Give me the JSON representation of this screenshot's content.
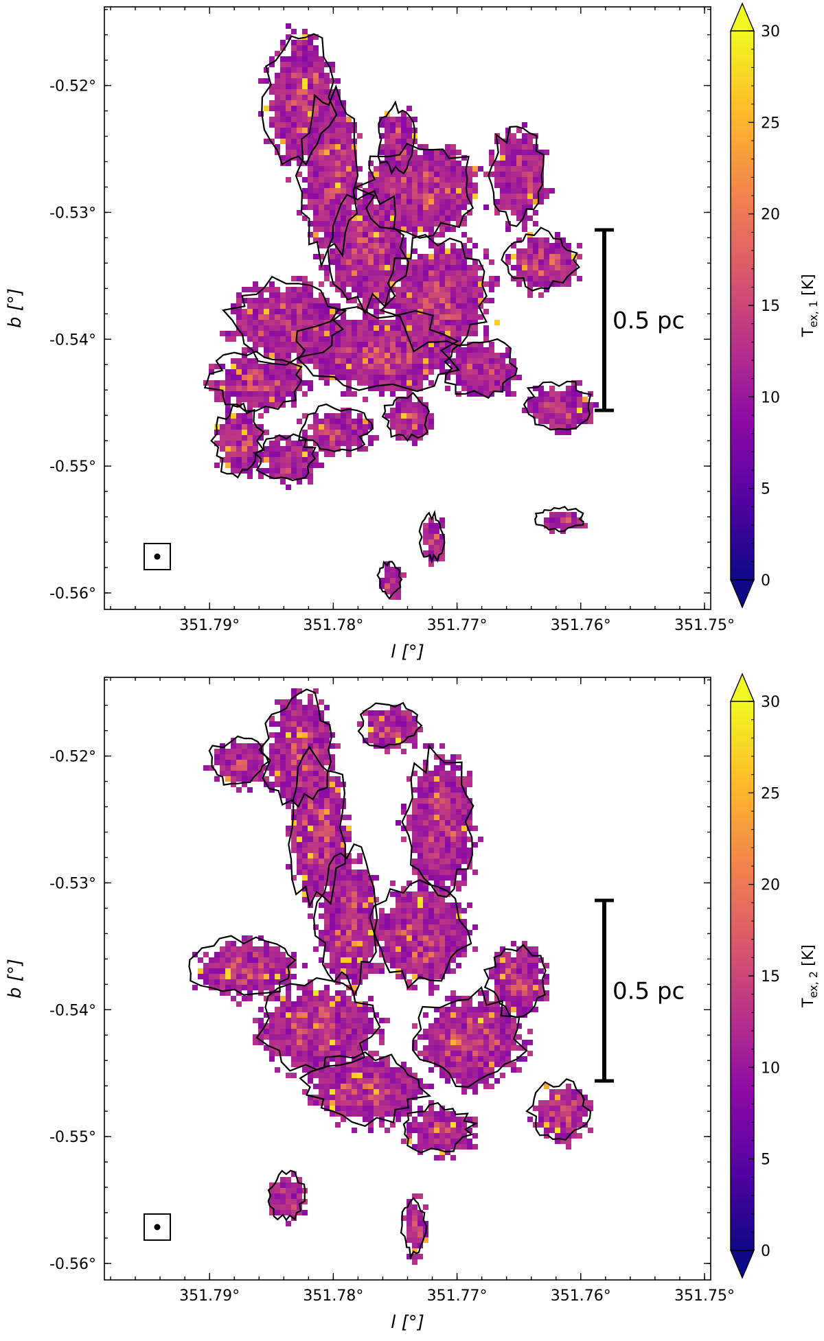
{
  "chart_data": [
    {
      "type": "heatmap",
      "xlabel": "l [°]",
      "ylabel": "b [°]",
      "x_ticks": [
        "351.79°",
        "351.78°",
        "351.77°",
        "351.76°",
        "351.75°"
      ],
      "x_tick_values": [
        351.79,
        351.78,
        351.77,
        351.76,
        351.75
      ],
      "y_ticks": [
        "-0.52°",
        "-0.53°",
        "-0.54°",
        "-0.55°",
        "-0.56°"
      ],
      "y_tick_values": [
        -0.52,
        -0.53,
        -0.54,
        -0.55,
        -0.56
      ],
      "xlim": [
        351.7985,
        351.7495
      ],
      "ylim": [
        -0.5613,
        -0.5138
      ],
      "scalebar": {
        "label": "0.5 pc"
      },
      "colorbar": {
        "label_main": "T",
        "label_sub": "ex, 1",
        "label_unit": " [K]",
        "min": 0,
        "max": 30,
        "ticks": [
          0,
          5,
          10,
          15,
          20,
          25,
          30
        ],
        "colormap": "plasma",
        "extend": "both"
      }
    },
    {
      "type": "heatmap",
      "xlabel": "l [°]",
      "ylabel": "b [°]",
      "x_ticks": [
        "351.79°",
        "351.78°",
        "351.77°",
        "351.76°",
        "351.75°"
      ],
      "x_tick_values": [
        351.79,
        351.78,
        351.77,
        351.76,
        351.75
      ],
      "y_ticks": [
        "-0.52°",
        "-0.53°",
        "-0.54°",
        "-0.55°",
        "-0.56°"
      ],
      "y_tick_values": [
        -0.52,
        -0.53,
        -0.54,
        -0.55,
        -0.56
      ],
      "xlim": [
        351.7985,
        351.7495
      ],
      "ylim": [
        -0.5613,
        -0.5138
      ],
      "scalebar": {
        "label": "0.5 pc"
      },
      "colorbar": {
        "label_main": "T",
        "label_sub": "ex, 2",
        "label_unit": " [K]",
        "min": 0,
        "max": 30,
        "ticks": [
          0,
          5,
          10,
          15,
          20,
          25,
          30
        ],
        "colormap": "plasma",
        "extend": "both"
      }
    }
  ],
  "colors": {
    "plasma": [
      "#0d0887",
      "#5302a3",
      "#8b0aa5",
      "#b83289",
      "#db5c68",
      "#f48849",
      "#febd2a",
      "#f0f921"
    ],
    "contour": "#000000"
  }
}
